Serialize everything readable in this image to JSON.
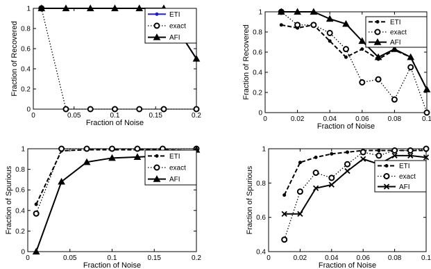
{
  "chart_data": [
    {
      "type": "line",
      "xlabel": "Fraction of Noise",
      "ylabel": "Fraction of Recovered",
      "xlim": [
        0,
        0.2
      ],
      "ylim": [
        0,
        1
      ],
      "xticks": [
        "0",
        "0.05",
        "0.1",
        "0.15",
        "0.2"
      ],
      "yticks": [
        "0",
        "0.2",
        "0.4",
        "0.6",
        "0.8",
        "1"
      ],
      "legend": "top-right",
      "series": [
        {
          "name": "ETI",
          "marker": "dot",
          "line": "solid",
          "color": "#1f1fbf",
          "x": [
            0.01,
            0.04,
            0.07,
            0.1,
            0.13,
            0.16,
            0.2
          ],
          "y": [
            1,
            1,
            1,
            1,
            1,
            1,
            0.5
          ]
        },
        {
          "name": "exact",
          "marker": "circle",
          "line": "dotted",
          "color": "#000000",
          "x": [
            0.01,
            0.04,
            0.07,
            0.1,
            0.13,
            0.16,
            0.2
          ],
          "y": [
            1,
            0,
            0,
            0,
            0,
            0,
            0
          ]
        },
        {
          "name": "AFI",
          "marker": "triangle",
          "line": "solid",
          "color": "#000000",
          "x": [
            0.01,
            0.04,
            0.07,
            0.1,
            0.13,
            0.16,
            0.2
          ],
          "y": [
            1,
            1,
            1,
            1,
            1,
            1,
            0.5
          ]
        }
      ]
    },
    {
      "type": "line",
      "xlabel": "Fraction of Noise",
      "ylabel": "Fraction of Recovered",
      "xlim": [
        0,
        0.1
      ],
      "ylim": [
        0,
        1
      ],
      "xticks": [
        "0",
        "0.02",
        "0.04",
        "0.06",
        "0.08",
        "0.1"
      ],
      "yticks": [
        "0",
        "0.2",
        "0.4",
        "0.6",
        "0.8",
        "1"
      ],
      "legend": "top-right",
      "series": [
        {
          "name": "ETI",
          "marker": "dot",
          "line": "dashed",
          "color": "#000000",
          "x": [
            0.01,
            0.02,
            0.03,
            0.04,
            0.05,
            0.06,
            0.07,
            0.08,
            0.09,
            0.1
          ],
          "y": [
            0.87,
            0.84,
            0.87,
            0.71,
            0.55,
            0.63,
            0.53,
            0.62,
            0.55,
            0.23
          ]
        },
        {
          "name": "exact",
          "marker": "circle",
          "line": "dotted",
          "color": "#000000",
          "x": [
            0.01,
            0.02,
            0.03,
            0.04,
            0.05,
            0.06,
            0.07,
            0.08,
            0.09,
            0.1
          ],
          "y": [
            1.0,
            0.87,
            0.87,
            0.79,
            0.63,
            0.3,
            0.33,
            0.13,
            0.45,
            0.0
          ]
        },
        {
          "name": "AFI",
          "marker": "triangle",
          "line": "solid",
          "color": "#000000",
          "x": [
            0.01,
            0.02,
            0.03,
            0.04,
            0.05,
            0.06,
            0.07,
            0.08,
            0.09,
            0.1
          ],
          "y": [
            1.0,
            1.0,
            1.0,
            0.93,
            0.88,
            0.71,
            0.55,
            0.63,
            0.55,
            0.23
          ]
        }
      ]
    },
    {
      "type": "line",
      "xlabel": "Fraction of Noise",
      "ylabel": "Fraction of Spurious",
      "xlim": [
        0,
        0.2
      ],
      "ylim": [
        0,
        1
      ],
      "xticks": [
        "0",
        "0.05",
        "0.1",
        "0.15",
        "0.2"
      ],
      "yticks": [
        "0",
        "0.2",
        "0.4",
        "0.6",
        "0.8",
        "1"
      ],
      "legend": "top-right",
      "series": [
        {
          "name": "ETI",
          "marker": "dot",
          "line": "dashed",
          "color": "#000000",
          "x": [
            0.01,
            0.04,
            0.07,
            0.1,
            0.13,
            0.16,
            0.2
          ],
          "y": [
            0.46,
            0.98,
            0.99,
            0.99,
            0.99,
            0.99,
            0.98
          ]
        },
        {
          "name": "exact",
          "marker": "circle",
          "line": "dotted",
          "color": "#000000",
          "x": [
            0.01,
            0.04,
            0.07,
            0.1,
            0.13,
            0.16,
            0.2
          ],
          "y": [
            0.37,
            1.0,
            1.0,
            1.0,
            1.0,
            1.0,
            1.0
          ]
        },
        {
          "name": "AFI",
          "marker": "triangle",
          "line": "solid",
          "color": "#000000",
          "x": [
            0.01,
            0.04,
            0.07,
            0.1,
            0.13,
            0.16,
            0.2
          ],
          "y": [
            0.0,
            0.68,
            0.87,
            0.91,
            0.92,
            0.93,
            0.99
          ]
        }
      ]
    },
    {
      "type": "line",
      "xlabel": "Fraction of Noise",
      "ylabel": "Fraction of Spurious",
      "xlim": [
        0,
        0.1
      ],
      "ylim": [
        0.4,
        1
      ],
      "xticks": [
        "0",
        "0.02",
        "0.04",
        "0.06",
        "0.08",
        "0.1"
      ],
      "yticks": [
        "0.4",
        "0.6",
        "0.8",
        "1"
      ],
      "legend": "top-right",
      "series": [
        {
          "name": "ETI",
          "marker": "dot",
          "line": "dashed",
          "color": "#000000",
          "x": [
            0.01,
            0.02,
            0.03,
            0.04,
            0.05,
            0.06,
            0.07,
            0.08,
            0.09,
            0.1
          ],
          "y": [
            0.73,
            0.92,
            0.95,
            0.97,
            0.98,
            0.99,
            0.99,
            0.99,
            0.99,
            0.99
          ]
        },
        {
          "name": "exact",
          "marker": "circle",
          "line": "dotted",
          "color": "#000000",
          "x": [
            0.01,
            0.02,
            0.03,
            0.04,
            0.05,
            0.06,
            0.07,
            0.08,
            0.09,
            0.1
          ],
          "y": [
            0.47,
            0.75,
            0.86,
            0.83,
            0.91,
            0.98,
            0.96,
            0.99,
            0.99,
            1.0
          ]
        },
        {
          "name": "AFI",
          "marker": "x",
          "line": "solid",
          "color": "#000000",
          "x": [
            0.01,
            0.02,
            0.03,
            0.04,
            0.05,
            0.06,
            0.07,
            0.08,
            0.09,
            0.1
          ],
          "y": [
            0.62,
            0.62,
            0.77,
            0.79,
            0.87,
            0.94,
            0.91,
            0.96,
            0.96,
            0.95
          ]
        }
      ]
    }
  ]
}
